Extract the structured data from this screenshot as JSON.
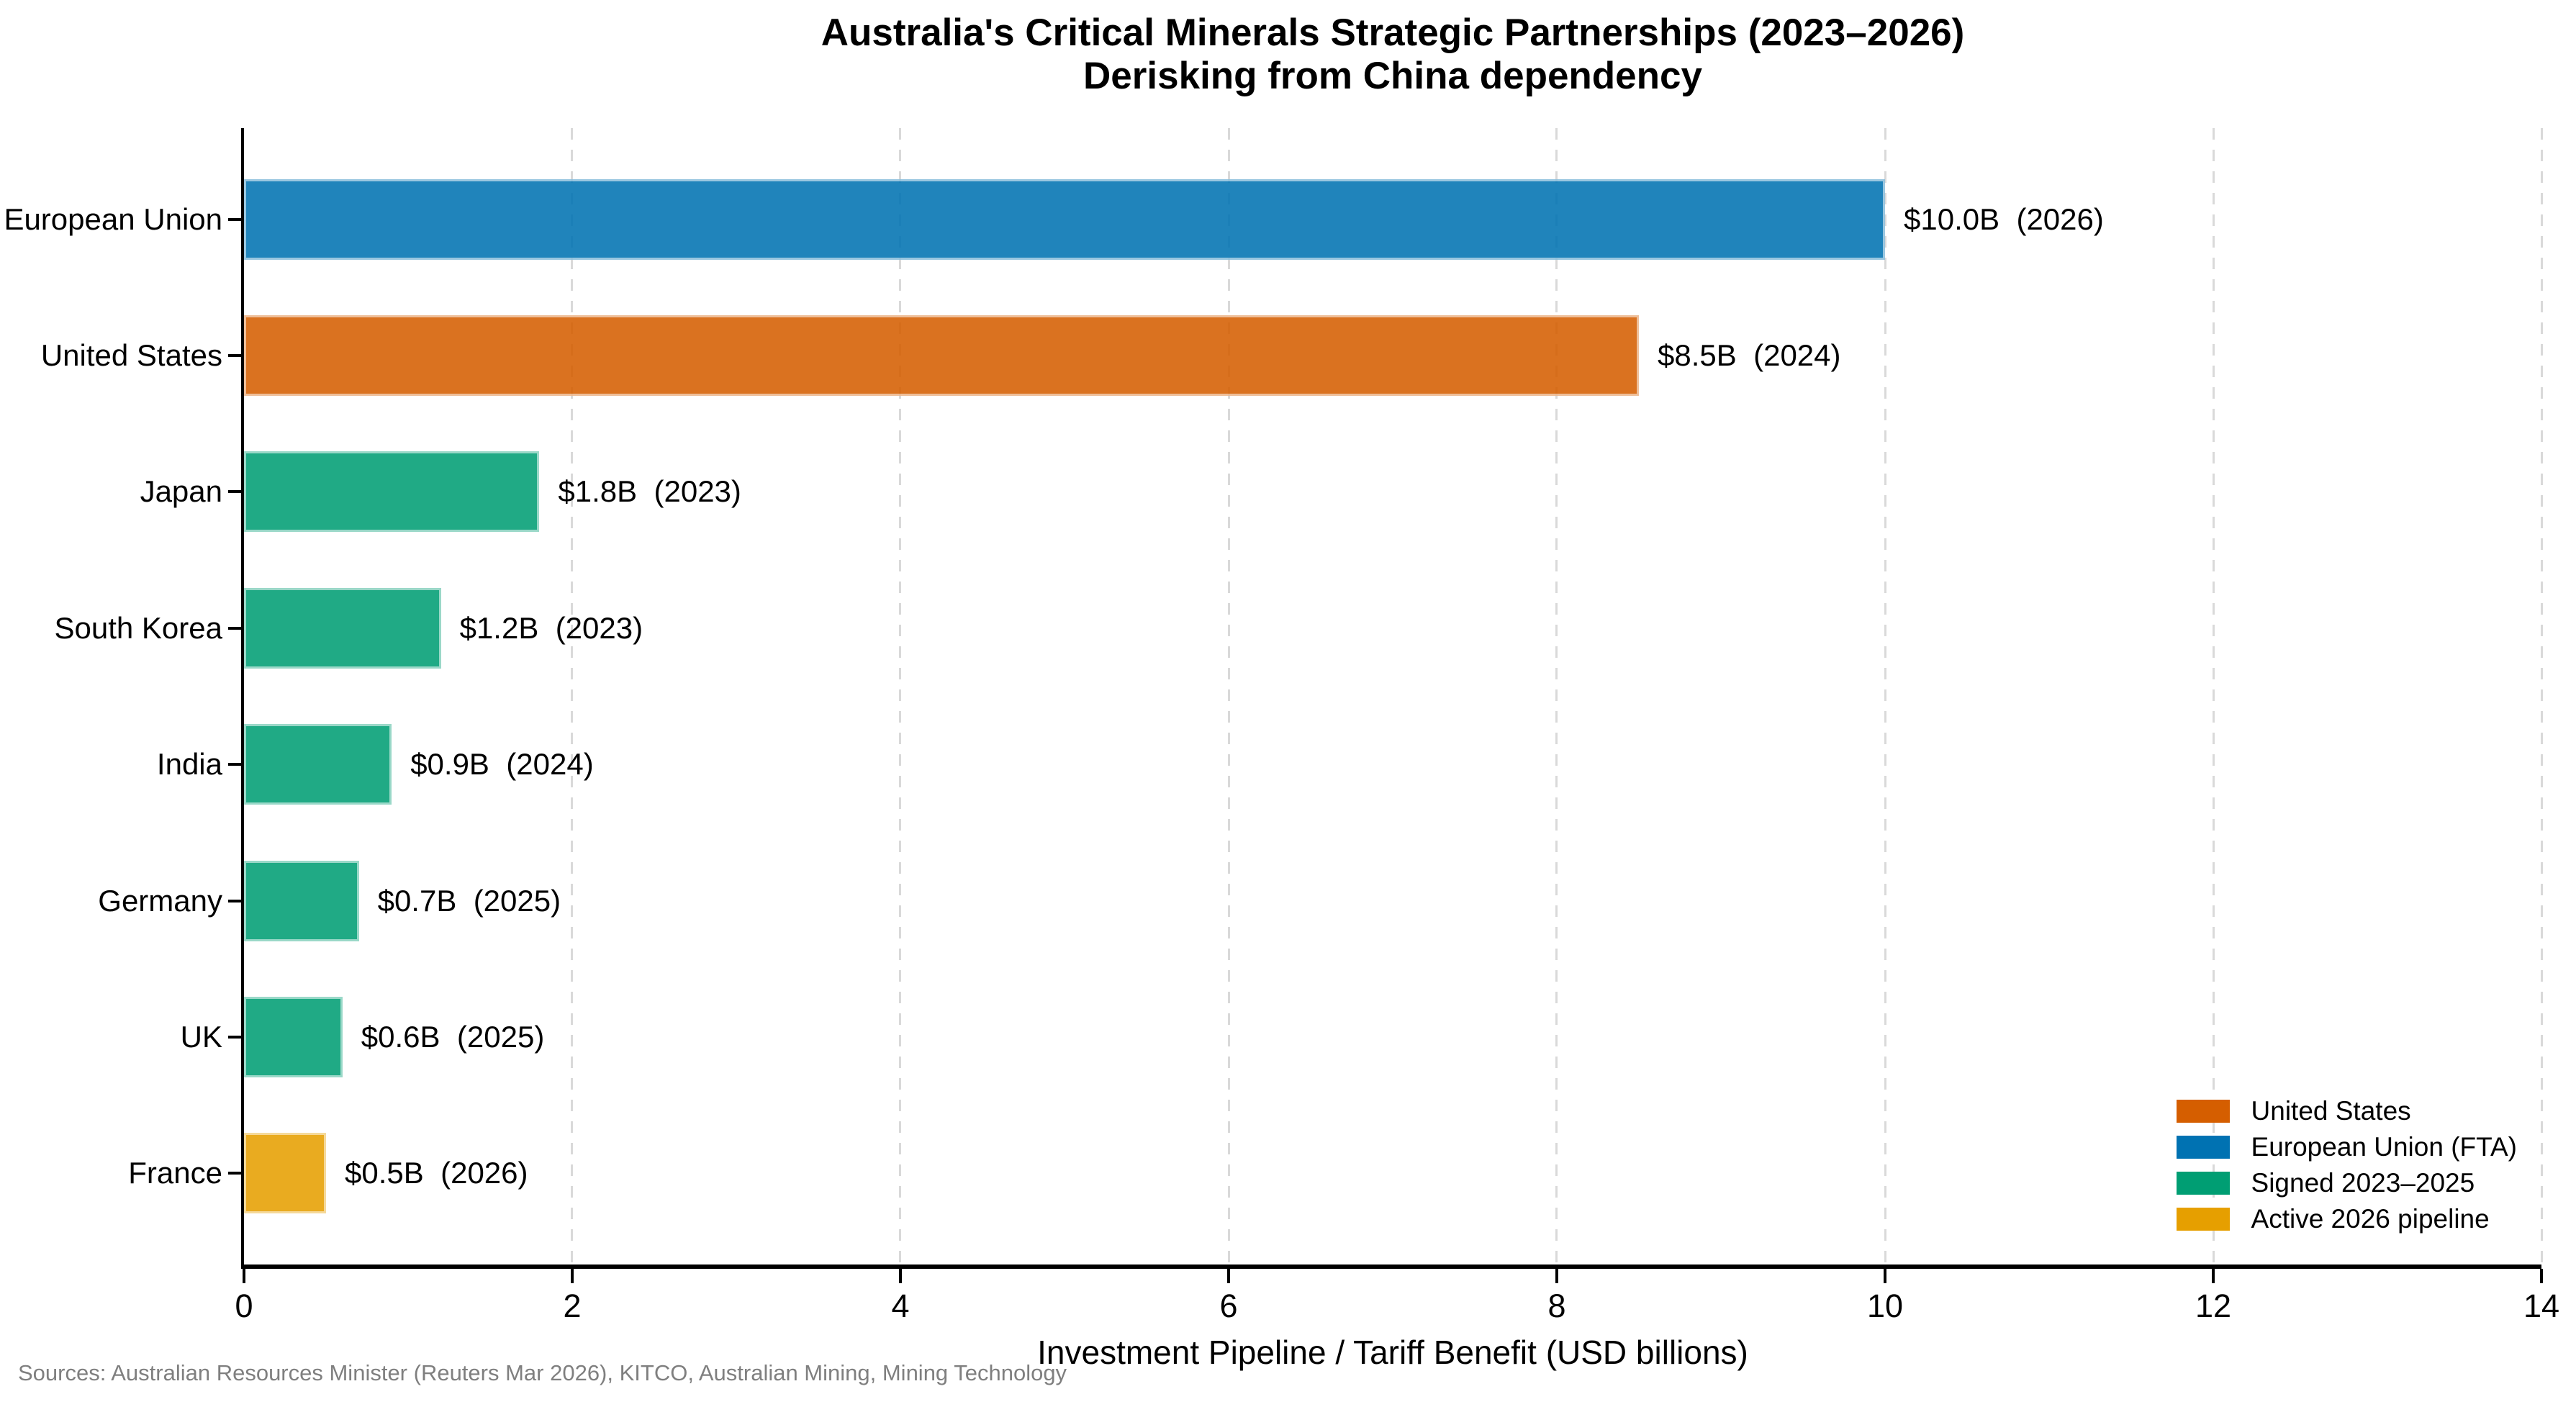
{
  "title": "Australia's Critical Minerals Strategic Partnerships (2023–2026)",
  "subtitle": "Derisking from China dependency",
  "source_note": "Sources: Australian Resources Minister (Reuters Mar 2026), KITCO, Australian Mining, Mining Technology",
  "colors": {
    "united_states": "#D55E00",
    "european_union": "#0072B2",
    "signed": "#009E73",
    "pipeline": "#E69F00",
    "gridline": "#d9d9d9",
    "axis": "#000000",
    "source_text": "#7f7f7f"
  },
  "chart_data": {
    "type": "bar",
    "orientation": "horizontal",
    "title": "Australia's Critical Minerals Strategic Partnerships (2023–2026)",
    "subtitle": "Derisking from China dependency",
    "xlabel": "Investment Pipeline / Tariff Benefit (USD billions)",
    "ylabel": "",
    "xlim": [
      0,
      14
    ],
    "xticks": [
      0,
      2,
      4,
      6,
      8,
      10,
      12,
      14
    ],
    "grid": "vertical dashed lines at each x tick, light gray, behind bars",
    "legend_position": "lower right, no frame",
    "categories": [
      "European Union",
      "United States",
      "Japan",
      "South Korea",
      "India",
      "Germany",
      "UK",
      "France"
    ],
    "values": [
      10.0,
      8.5,
      1.8,
      1.2,
      0.9,
      0.7,
      0.6,
      0.5
    ],
    "years": [
      2026,
      2024,
      2023,
      2023,
      2024,
      2025,
      2025,
      2026
    ],
    "bar_labels": [
      "$10.0B  (2026)",
      "$8.5B  (2024)",
      "$1.8B  (2023)",
      "$1.2B  (2023)",
      "$0.9B  (2024)",
      "$0.7B  (2025)",
      "$0.6B  (2025)",
      "$0.5B  (2026)"
    ],
    "series_key": [
      "european_union",
      "united_states",
      "signed",
      "signed",
      "signed",
      "signed",
      "signed",
      "pipeline"
    ],
    "legend": [
      {
        "label": "United States",
        "color_key": "united_states"
      },
      {
        "label": "European Union (FTA)",
        "color_key": "european_union"
      },
      {
        "label": "Signed 2023–2025",
        "color_key": "signed"
      },
      {
        "label": "Active 2026 pipeline",
        "color_key": "pipeline"
      }
    ]
  }
}
